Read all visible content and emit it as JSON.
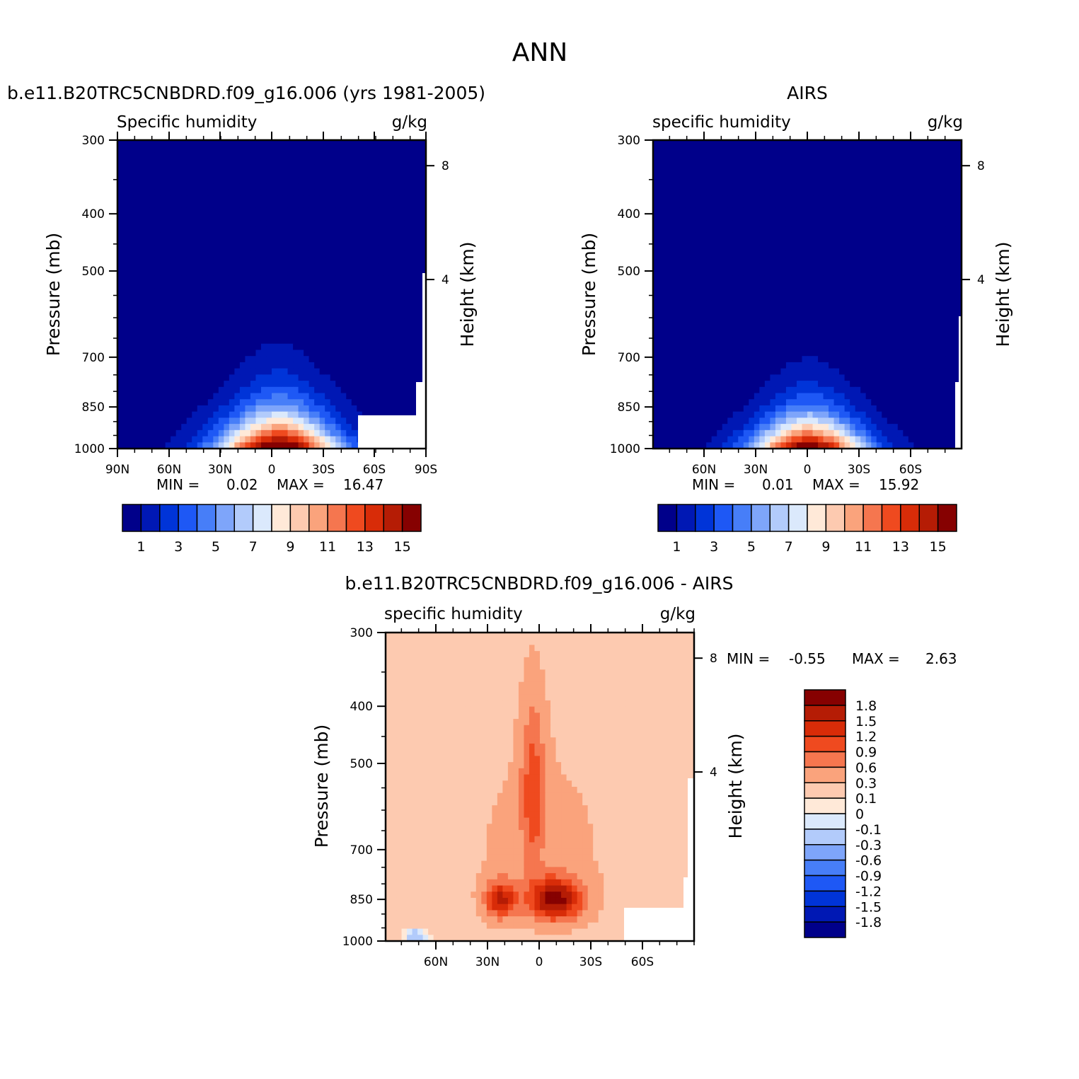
{
  "page_title": "ANN",
  "colors": {
    "pos_scale": [
      "#00008a",
      "#0018b4",
      "#0034d8",
      "#1e58f5",
      "#477ef8",
      "#7ea5fa",
      "#b2cbfb",
      "#dbe9fc",
      "#ffe9d8",
      "#fdcab0",
      "#faa37c",
      "#f5764f",
      "#ef4a1f",
      "#d82c08",
      "#b51c05",
      "#860101"
    ],
    "diff_scale": [
      "#00008a",
      "#0018b4",
      "#0034d8",
      "#1e58f5",
      "#477ef8",
      "#7ea5fa",
      "#b2cbfb",
      "#dbe9fc",
      "#ffe9d8",
      "#fdcab0",
      "#faa37c",
      "#f5764f",
      "#ef4a1f",
      "#d82c08",
      "#b51c05",
      "#860101"
    ]
  },
  "chart_data": [
    {
      "type": "heatmap",
      "title": "b.e11.B20TRC5CNBDRD.f09_g16.006 (yrs 1981-2005)",
      "left_string": "Specific humidity",
      "right_string": "g/kg",
      "xlabel": "",
      "ylabel": "Pressure (mb)",
      "ylabel_right": "Height (km)",
      "x_ticks": [
        "90N",
        "60N",
        "30N",
        "0",
        "30S",
        "60S",
        "90S"
      ],
      "y_ticks": [
        "300",
        "400",
        "500",
        "700",
        "850",
        "1000"
      ],
      "right_ticks": [
        "8",
        "4"
      ],
      "ylim": [
        1000,
        300
      ],
      "stats": {
        "min_label": "MIN =",
        "min": "0.02",
        "max_label": "MAX =",
        "max": "16.47"
      },
      "levels": [
        1,
        2,
        3,
        4,
        5,
        6,
        7,
        8,
        9,
        10,
        11,
        12,
        13,
        14,
        15
      ],
      "colorbar_labels": [
        "1",
        "3",
        "5",
        "7",
        "9",
        "11",
        "13",
        "15"
      ],
      "peak_value": 16.47
    },
    {
      "type": "heatmap",
      "title": "AIRS",
      "left_string": "specific humidity",
      "right_string": "g/kg",
      "xlabel": "",
      "ylabel": "Pressure (mb)",
      "ylabel_right": "Height (km)",
      "x_ticks": [
        "60N",
        "30N",
        "0",
        "30S",
        "60S"
      ],
      "y_ticks": [
        "300",
        "400",
        "500",
        "700",
        "850",
        "1000"
      ],
      "right_ticks": [
        "8",
        "4"
      ],
      "ylim": [
        1000,
        300
      ],
      "stats": {
        "min_label": "MIN =",
        "min": "0.01",
        "max_label": "MAX =",
        "max": "15.92"
      },
      "levels": [
        1,
        2,
        3,
        4,
        5,
        6,
        7,
        8,
        9,
        10,
        11,
        12,
        13,
        14,
        15
      ],
      "colorbar_labels": [
        "1",
        "3",
        "5",
        "7",
        "9",
        "11",
        "13",
        "15"
      ],
      "peak_value": 15.92
    },
    {
      "type": "heatmap",
      "title": "b.e11.B20TRC5CNBDRD.f09_g16.006 - AIRS",
      "left_string": "specific humidity",
      "right_string": "g/kg",
      "xlabel": "",
      "ylabel": "Pressure (mb)",
      "ylabel_right": "Height (km)",
      "x_ticks": [
        "60N",
        "30N",
        "0",
        "30S",
        "60S"
      ],
      "y_ticks": [
        "300",
        "400",
        "500",
        "700",
        "850",
        "1000"
      ],
      "right_ticks": [
        "8",
        "4"
      ],
      "ylim": [
        1000,
        300
      ],
      "stats": {
        "min_label": "MIN =",
        "min": "-0.55",
        "max_label": "MAX =",
        "max": "2.63"
      },
      "levels": [
        -1.8,
        -1.5,
        -1.2,
        -0.9,
        -0.6,
        -0.3,
        -0.1,
        0,
        0.1,
        0.3,
        0.6,
        0.9,
        1.2,
        1.5,
        1.8
      ],
      "colorbar_labels": [
        "1.8",
        "1.5",
        "1.2",
        "0.9",
        "0.6",
        "0.3",
        "0.1",
        "0",
        "-0.1",
        "-0.3",
        "-0.6",
        "-0.9",
        "-1.2",
        "-1.5",
        "-1.8"
      ]
    }
  ]
}
